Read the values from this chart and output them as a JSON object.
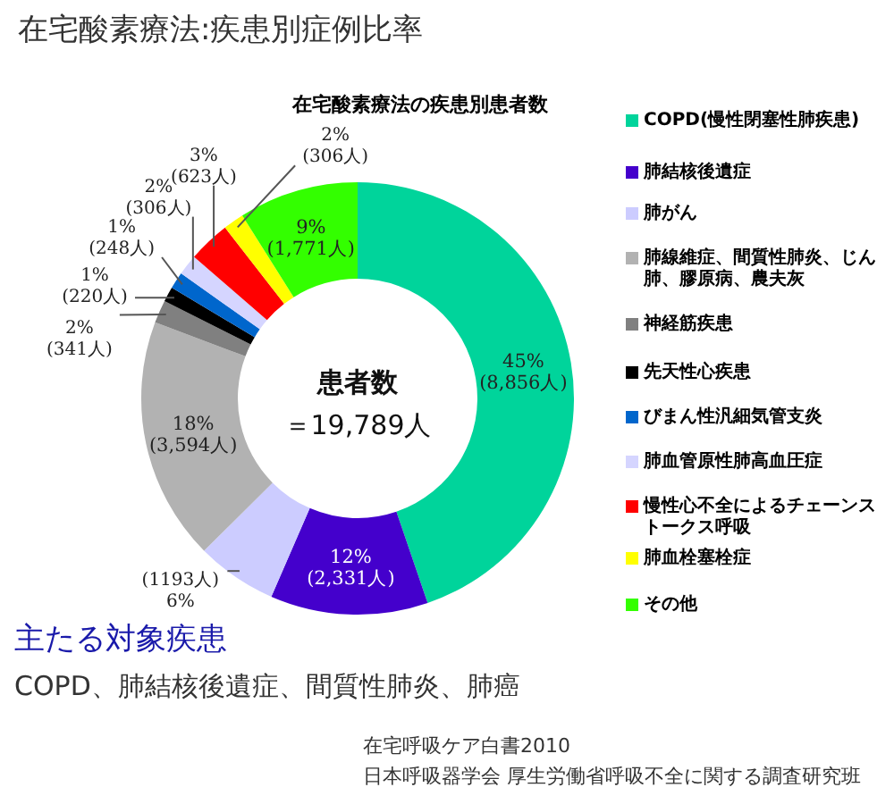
{
  "chart_data": {
    "type": "donut",
    "title": "在宅酸素療法:疾患別症例比率",
    "subtitle": "在宅酸素療法の疾患別患者数",
    "categories": [
      "COPD(慢性閉塞性肺疾患)",
      "肺結核後遺症",
      "肺がん",
      "肺線維症、間質性肺炎、じん肺、膠原病、農夫灰",
      "神経筋疾患",
      "先天性心疾患",
      "びまん性汎細気管支炎",
      "肺血管原性肺高血圧症",
      "慢性心不全によるチェーンストークス呼吸",
      "肺血栓塞栓症",
      "その他"
    ],
    "values": [
      8856,
      2331,
      1193,
      3594,
      341,
      220,
      248,
      306,
      623,
      306,
      1771
    ],
    "colors": [
      "#00d49b",
      "#4400cc",
      "#ccccff",
      "#b2b2b2",
      "#808080",
      "#000000",
      "#0066cc",
      "#d5d5ff",
      "#ff0000",
      "#ffff00",
      "#33ff00"
    ],
    "value_labels": [
      "45%\n(8,856人)",
      "12%\n(2,331人)",
      "(1193人)\n6%",
      "18%\n(3,594人)",
      "2%\n(341人)",
      "1%\n(220人)",
      "1%\n(248人)",
      "2%\n(306人)",
      "3%\n(623人)",
      "2%\n(306人)",
      "9%\n(1,771人)"
    ],
    "legend": "right",
    "annotations": [
      "患者数",
      "＝19,789人",
      "主たる対象疾患",
      "COPD、肺結核後遺症、間質性肺炎、肺癌",
      "在宅呼吸ケア白書2010",
      "日本呼吸器学会 厚生労働省呼吸不全に関する調査研究班"
    ]
  }
}
